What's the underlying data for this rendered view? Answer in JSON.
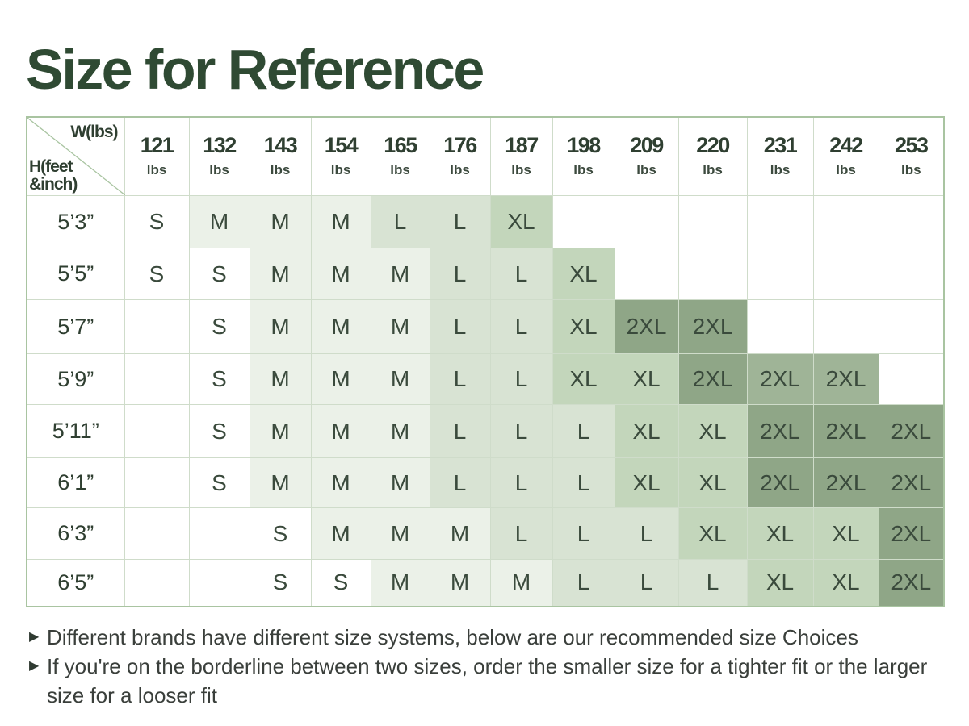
{
  "title": "Size for Reference",
  "corner": {
    "weight_label": "W(lbs)",
    "height_label_line1": "H(feet",
    "height_label_line2": "&inch)"
  },
  "unit": "lbs",
  "weights": [
    "121",
    "132",
    "143",
    "154",
    "165",
    "176",
    "187",
    "198",
    "209",
    "220",
    "231",
    "242",
    "253"
  ],
  "rows": [
    {
      "height": "5’3”",
      "sizes": [
        "S",
        "M",
        "M",
        "M",
        "L",
        "L",
        "XL",
        "",
        "",
        "",
        "",
        "",
        ""
      ]
    },
    {
      "height": "5’5”",
      "sizes": [
        "S",
        "S",
        "M",
        "M",
        "M",
        "L",
        "L",
        "XL",
        "",
        "",
        "",
        "",
        ""
      ]
    },
    {
      "height": "5’7”",
      "sizes": [
        "",
        "S",
        "M",
        "M",
        "M",
        "L",
        "L",
        "XL",
        "2XL",
        "2XL",
        "",
        "",
        ""
      ]
    },
    {
      "height": "5’9”",
      "sizes": [
        "",
        "S",
        "M",
        "M",
        "M",
        "L",
        "L",
        "XL",
        "XL",
        "2XL",
        "2XL",
        "2XL",
        ""
      ]
    },
    {
      "height": "5’11”",
      "sizes": [
        "",
        "S",
        "M",
        "M",
        "M",
        "L",
        "L",
        "L",
        "XL",
        "XL",
        "2XL",
        "2XL",
        "2XL"
      ]
    },
    {
      "height": "6’1”",
      "sizes": [
        "",
        "S",
        "M",
        "M",
        "M",
        "L",
        "L",
        "L",
        "XL",
        "XL",
        "2XL",
        "2XL",
        "2XL"
      ]
    },
    {
      "height": "6’3”",
      "sizes": [
        "",
        "",
        "S",
        "M",
        "M",
        "M",
        "L",
        "L",
        "L",
        "XL",
        "XL",
        "XL",
        "2XL"
      ]
    },
    {
      "height": "6’5”",
      "sizes": [
        "",
        "",
        "S",
        "S",
        "M",
        "M",
        "M",
        "L",
        "L",
        "L",
        "XL",
        "XL",
        "2XL"
      ]
    }
  ],
  "shading": [
    [
      "w",
      "s1",
      "s1",
      "s1",
      "s2",
      "s2",
      "s3",
      "w",
      "w",
      "w",
      "w",
      "w",
      "w"
    ],
    [
      "w",
      "w",
      "s1",
      "s1",
      "s1",
      "s2",
      "s2",
      "s3",
      "w",
      "w",
      "w",
      "w",
      "w"
    ],
    [
      "w",
      "w",
      "s1",
      "s1",
      "s1",
      "s2",
      "s2",
      "s3",
      "s5",
      "s5",
      "w",
      "w",
      "w"
    ],
    [
      "w",
      "w",
      "s1",
      "s1",
      "s1",
      "s2",
      "s2",
      "s3",
      "s3",
      "s5",
      "s4",
      "s4",
      "w"
    ],
    [
      "w",
      "w",
      "s1",
      "s1",
      "s1",
      "s2",
      "s2",
      "s2",
      "s3",
      "s3",
      "s5",
      "s5",
      "s5"
    ],
    [
      "w",
      "w",
      "s1",
      "s1",
      "s1",
      "s2",
      "s2",
      "s2",
      "s3",
      "s3",
      "s5",
      "s5",
      "s5"
    ],
    [
      "w",
      "w",
      "w",
      "s1",
      "s1",
      "s1",
      "s2",
      "s2",
      "s2",
      "s3",
      "s3",
      "s3",
      "s5"
    ],
    [
      "w",
      "w",
      "w",
      "w",
      "s1",
      "s1",
      "s1",
      "s2",
      "s2",
      "s2",
      "s3",
      "s3",
      "s5"
    ]
  ],
  "colors": {
    "w": "#ffffff",
    "s1": "#ebf1e8",
    "s2": "#d8e3d3",
    "s3": "#c3d6bb",
    "s4": "#9fb497",
    "s5": "#8fa687",
    "title": "#2f4a33",
    "border": "#a9c4a1"
  },
  "notes": [
    "Different brands have different size systems, below are our recommended size Choices",
    "If you're on the borderline between two sizes, order the smaller size for a tighter fit or the larger size for a looser fit"
  ]
}
